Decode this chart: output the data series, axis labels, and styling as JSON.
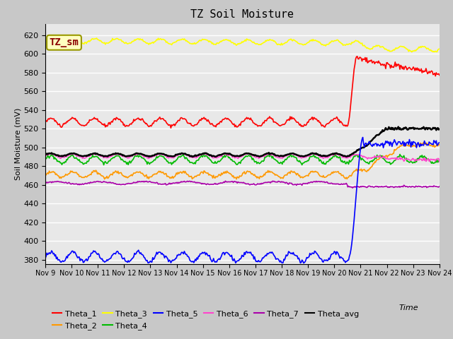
{
  "title": "TZ Soil Moisture",
  "ylabel": "Soil Moisture (mV)",
  "xlabel": "Time",
  "ylim": [
    375,
    632
  ],
  "yticks": [
    380,
    400,
    420,
    440,
    460,
    480,
    500,
    520,
    540,
    560,
    580,
    600,
    620
  ],
  "x_tick_labels": [
    "Nov 9",
    "Nov 10",
    "Nov 11",
    "Nov 12",
    "Nov 13",
    "Nov 14",
    "Nov 15",
    "Nov 16",
    "Nov 17",
    "Nov 18",
    "Nov 19",
    "Nov 20",
    "Nov 21",
    "Nov 22",
    "Nov 23",
    "Nov 24"
  ],
  "series": {
    "Theta_1": {
      "color": "#ff0000"
    },
    "Theta_2": {
      "color": "#ff9900"
    },
    "Theta_3": {
      "color": "#ffff00"
    },
    "Theta_4": {
      "color": "#00bb00"
    },
    "Theta_5": {
      "color": "#0000ff"
    },
    "Theta_6": {
      "color": "#ff44cc"
    },
    "Theta_7": {
      "color": "#aa00aa"
    },
    "Theta_avg": {
      "color": "#000000"
    }
  },
  "legend_row1": [
    "Theta_1",
    "Theta_2",
    "Theta_3",
    "Theta_4",
    "Theta_5",
    "Theta_6"
  ],
  "legend_row2": [
    "Theta_7",
    "Theta_avg"
  ],
  "label_box": {
    "text": "TZ_sm",
    "color": "#8b0000",
    "bg": "#ffffc0",
    "edgecolor": "#999900"
  },
  "bg_color": "#e8e8e8",
  "grid_color": "#ffffff",
  "fig_bg": "#c8c8c8"
}
